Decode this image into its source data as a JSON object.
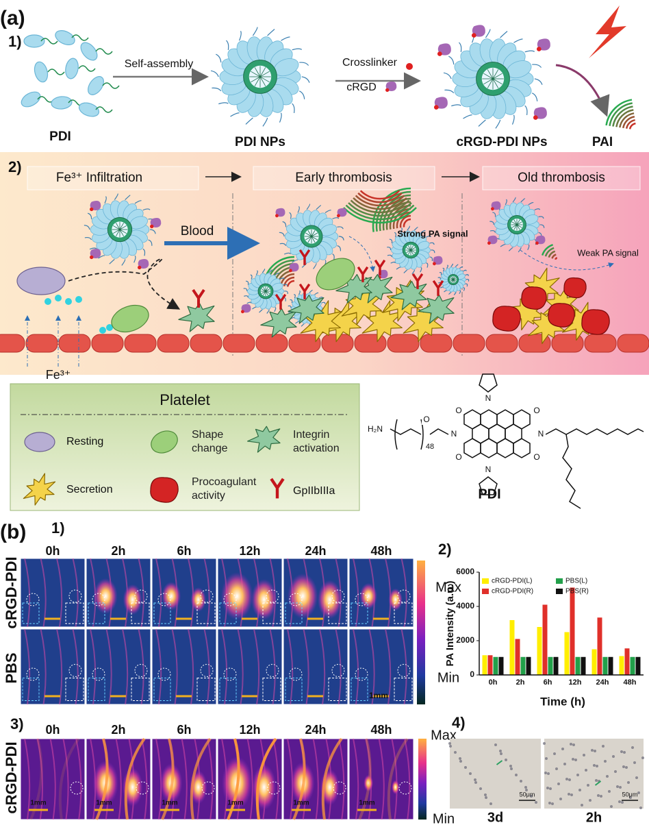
{
  "panel_a": {
    "label": "(a)",
    "part1": {
      "label": "1)",
      "pdi": "PDI",
      "step1": "Self-assembly",
      "pdi_nps": "PDI NPs",
      "crosslinker": "Crosslinker",
      "crgd": "cRGD",
      "crgd_pdi_nps": "cRGD-PDI NPs",
      "pai": "PAI"
    },
    "part2": {
      "label": "2)",
      "stages": [
        "Fe³⁺ Infiltration",
        "Early thrombosis",
        "Old thrombosis"
      ],
      "blood": "Blood",
      "strong": "Strong PA signal",
      "weak": "Weak PA signal",
      "ion": "Fe³⁺"
    },
    "legend": {
      "title": "Platelet",
      "items": [
        "Resting",
        "Shape change",
        "Integrin activation",
        "Secretion",
        "Procoagulant activity",
        "GpIIbIIIa"
      ]
    },
    "structure": {
      "atoms": [
        "H₂N",
        "O",
        "48",
        "O",
        "O",
        "N",
        "O",
        "O",
        "N",
        "N",
        "N"
      ],
      "name": "PDI"
    }
  },
  "panel_b": {
    "label": "(b)",
    "part1": {
      "label": "1)",
      "times": [
        "0h",
        "2h",
        "6h",
        "12h",
        "24h",
        "48h"
      ],
      "rows": [
        "cRGD-PDI",
        "PBS"
      ],
      "colorbar": [
        "Max",
        "Min"
      ],
      "scale": "1mm"
    },
    "part2": {
      "label": "2)"
    },
    "part3": {
      "label": "3)",
      "times": [
        "0h",
        "2h",
        "6h",
        "12h",
        "24h",
        "48h"
      ],
      "row": "cRGD-PDI",
      "colorbar": [
        "Max",
        "Min"
      ],
      "scale": "1mm"
    },
    "part4": {
      "label": "4)",
      "times": [
        "3d",
        "2h"
      ],
      "scale": "50μm"
    }
  },
  "chart_data": {
    "type": "bar",
    "x_label": "Time (h)",
    "y_label": "PA Intensity (a.u.)",
    "categories": [
      "0h",
      "2h",
      "6h",
      "12h",
      "24h",
      "48h"
    ],
    "series": [
      {
        "name": "cRGD-PDI(L)",
        "color": "#ffee00",
        "values": [
          1150,
          3200,
          2800,
          2500,
          1500,
          1100
        ]
      },
      {
        "name": "cRGD-PDI(R)",
        "color": "#e0302a",
        "values": [
          1150,
          2100,
          4100,
          5100,
          3350,
          1550
        ]
      },
      {
        "name": "PBS(L)",
        "color": "#22a04a",
        "values": [
          1050,
          1050,
          1050,
          1050,
          1050,
          1050
        ]
      },
      {
        "name": "PBS(R)",
        "color": "#111111",
        "values": [
          1050,
          1050,
          1050,
          1050,
          1050,
          1050
        ]
      }
    ],
    "ylim": [
      0,
      6000
    ],
    "yticks": [
      0,
      2000,
      4000,
      6000
    ],
    "legend": "top"
  }
}
